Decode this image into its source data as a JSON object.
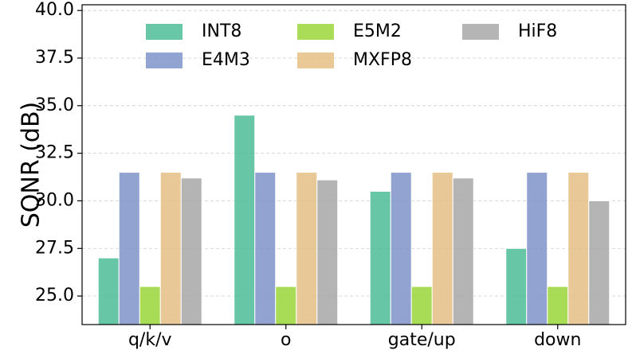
{
  "chart_data": {
    "type": "bar",
    "title": "",
    "xlabel": "",
    "ylabel": "SQNR (dB)",
    "ylim": [
      23.5,
      40.3
    ],
    "yticks": [
      "25.0",
      "27.5",
      "30.0",
      "32.5",
      "35.0",
      "37.5",
      "40.0"
    ],
    "grid": true,
    "legend_position": "top",
    "categories": [
      "q/k/v",
      "o",
      "gate/up",
      "down"
    ],
    "series": [
      {
        "name": "INT8",
        "color": "#4dbd96",
        "values": [
          27.0,
          34.5,
          30.5,
          27.5
        ]
      },
      {
        "name": "E4M3",
        "color": "#7f94c9",
        "values": [
          31.5,
          31.5,
          31.5,
          31.5
        ]
      },
      {
        "name": "E5M2",
        "color": "#9bd639",
        "values": [
          25.5,
          25.5,
          25.5,
          25.5
        ]
      },
      {
        "name": "MXFP8",
        "color": "#e6bf85",
        "values": [
          31.5,
          31.5,
          31.5,
          31.5
        ]
      },
      {
        "name": "HiF8",
        "color": "#a8a8a8",
        "values": [
          31.2,
          31.1,
          31.2,
          30.0
        ]
      }
    ]
  }
}
